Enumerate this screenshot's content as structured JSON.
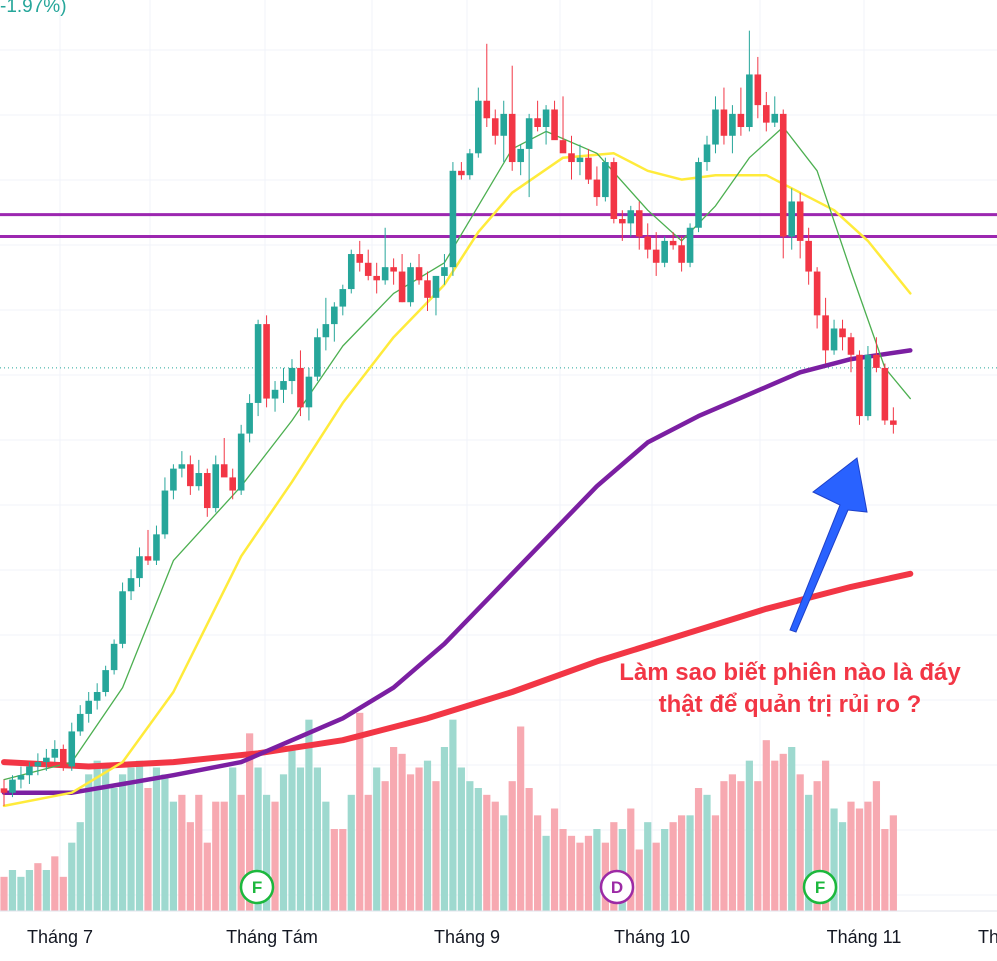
{
  "header": {
    "change_pct": "-1.97%)"
  },
  "chart_data": {
    "type": "candlestick",
    "x_axis": {
      "labels": [
        "Tháng 7",
        "Tháng Tám",
        "Tháng 9",
        "Tháng 10",
        "Tháng 11",
        "Th"
      ]
    },
    "y_range": [
      15.5,
      36.3
    ],
    "colors": {
      "up": "#26a69a",
      "down": "#f23645",
      "vol_up": "#9ed9cf",
      "vol_down": "#f7a9b1",
      "ma_fast": "#4caf50",
      "ma_mid": "#ffeb3b",
      "ma_slow": "#7b1fa2",
      "ma_long": "#f23645",
      "resistance": "#9c27b0",
      "arrow": "#2962ff"
    },
    "candles": [
      [
        18.3,
        18.5,
        17.9,
        18.2
      ],
      [
        18.2,
        18.6,
        18.1,
        18.5
      ],
      [
        18.5,
        18.8,
        18.3,
        18.6
      ],
      [
        18.6,
        18.9,
        18.4,
        18.8
      ],
      [
        18.8,
        19.1,
        18.6,
        18.9
      ],
      [
        18.9,
        19.2,
        18.7,
        19.0
      ],
      [
        19.0,
        19.4,
        18.9,
        19.2
      ],
      [
        19.2,
        19.3,
        18.7,
        18.8
      ],
      [
        18.8,
        19.8,
        18.7,
        19.6
      ],
      [
        19.6,
        20.2,
        19.5,
        20.0
      ],
      [
        20.0,
        20.5,
        19.8,
        20.3
      ],
      [
        20.3,
        20.7,
        20.1,
        20.5
      ],
      [
        20.5,
        21.1,
        20.4,
        21.0
      ],
      [
        21.0,
        21.7,
        20.9,
        21.6
      ],
      [
        21.6,
        23.0,
        21.5,
        22.8
      ],
      [
        22.8,
        23.3,
        22.6,
        23.1
      ],
      [
        23.1,
        23.8,
        22.9,
        23.6
      ],
      [
        23.6,
        24.2,
        23.4,
        23.5
      ],
      [
        23.5,
        24.3,
        23.4,
        24.1
      ],
      [
        24.1,
        25.4,
        24.0,
        25.1
      ],
      [
        25.1,
        25.7,
        24.9,
        25.6
      ],
      [
        25.6,
        26.0,
        25.4,
        25.7
      ],
      [
        25.7,
        25.9,
        25.0,
        25.2
      ],
      [
        25.2,
        25.8,
        25.1,
        25.5
      ],
      [
        25.5,
        25.6,
        24.5,
        24.7
      ],
      [
        24.7,
        25.9,
        24.6,
        25.7
      ],
      [
        25.7,
        26.3,
        25.5,
        25.4
      ],
      [
        25.4,
        25.6,
        24.9,
        25.1
      ],
      [
        25.1,
        26.6,
        25.0,
        26.4
      ],
      [
        26.4,
        27.3,
        26.2,
        27.1
      ],
      [
        27.1,
        29.0,
        26.8,
        28.9
      ],
      [
        28.9,
        29.1,
        27.0,
        27.2
      ],
      [
        27.2,
        27.6,
        26.9,
        27.4
      ],
      [
        27.4,
        27.9,
        27.1,
        27.6
      ],
      [
        27.6,
        28.1,
        27.3,
        27.9
      ],
      [
        27.9,
        28.3,
        26.8,
        27.0
      ],
      [
        27.0,
        27.9,
        26.7,
        27.7
      ],
      [
        27.7,
        28.8,
        27.6,
        28.6
      ],
      [
        28.6,
        29.5,
        28.3,
        28.9
      ],
      [
        28.9,
        29.4,
        28.5,
        29.3
      ],
      [
        29.3,
        29.8,
        29.1,
        29.7
      ],
      [
        29.7,
        30.6,
        29.6,
        30.5
      ],
      [
        30.5,
        30.8,
        30.1,
        30.3
      ],
      [
        30.3,
        30.6,
        29.9,
        30.0
      ],
      [
        30.0,
        30.3,
        29.6,
        29.9
      ],
      [
        29.9,
        31.1,
        29.8,
        30.2
      ],
      [
        30.2,
        30.4,
        29.8,
        30.1
      ],
      [
        30.1,
        30.5,
        29.4,
        29.4
      ],
      [
        29.4,
        30.3,
        29.3,
        30.2
      ],
      [
        30.2,
        30.5,
        29.8,
        29.9
      ],
      [
        29.9,
        30.1,
        29.2,
        29.5
      ],
      [
        29.5,
        30.0,
        29.1,
        30.0
      ],
      [
        30.0,
        30.5,
        29.8,
        30.2
      ],
      [
        30.2,
        32.6,
        30.0,
        32.4
      ],
      [
        32.4,
        32.6,
        32.2,
        32.3
      ],
      [
        32.3,
        32.9,
        32.2,
        32.8
      ],
      [
        32.8,
        34.3,
        32.7,
        34.0
      ],
      [
        34.0,
        35.3,
        33.4,
        33.6
      ],
      [
        33.6,
        33.8,
        33.0,
        33.2
      ],
      [
        33.2,
        34.0,
        32.6,
        33.7
      ],
      [
        33.7,
        34.8,
        32.4,
        32.6
      ],
      [
        32.6,
        33.0,
        32.3,
        32.9
      ],
      [
        32.9,
        33.7,
        31.8,
        33.6
      ],
      [
        33.6,
        34.0,
        33.3,
        33.4
      ],
      [
        33.4,
        33.9,
        33.0,
        33.8
      ],
      [
        33.8,
        34.0,
        33.2,
        33.1
      ],
      [
        33.1,
        34.1,
        32.9,
        32.8
      ],
      [
        32.8,
        33.2,
        32.2,
        32.6
      ],
      [
        32.6,
        33.0,
        32.3,
        32.7
      ],
      [
        32.7,
        32.9,
        32.1,
        32.2
      ],
      [
        32.2,
        32.5,
        31.6,
        31.8
      ],
      [
        31.8,
        32.7,
        31.7,
        32.6
      ],
      [
        32.6,
        32.7,
        31.2,
        31.3
      ],
      [
        31.3,
        31.5,
        30.8,
        31.2
      ],
      [
        31.2,
        31.6,
        30.9,
        31.5
      ],
      [
        31.5,
        31.7,
        30.6,
        30.9
      ],
      [
        30.9,
        31.2,
        30.4,
        30.6
      ],
      [
        30.6,
        31.0,
        30.0,
        30.3
      ],
      [
        30.3,
        30.9,
        30.2,
        30.8
      ],
      [
        30.8,
        31.0,
        30.6,
        30.7
      ],
      [
        30.7,
        30.9,
        30.1,
        30.3
      ],
      [
        30.3,
        31.2,
        30.2,
        31.1
      ],
      [
        31.1,
        32.7,
        31.0,
        32.6
      ],
      [
        32.6,
        33.2,
        32.4,
        33.0
      ],
      [
        33.0,
        34.1,
        32.8,
        33.8
      ],
      [
        33.8,
        34.3,
        33.0,
        33.2
      ],
      [
        33.2,
        33.9,
        32.8,
        33.7
      ],
      [
        33.7,
        34.3,
        33.2,
        33.4
      ],
      [
        33.4,
        35.6,
        33.3,
        34.6
      ],
      [
        34.6,
        35.0,
        33.6,
        33.9
      ],
      [
        33.9,
        34.2,
        33.3,
        33.5
      ],
      [
        33.5,
        34.1,
        33.4,
        33.7
      ],
      [
        33.7,
        33.8,
        30.4,
        30.9
      ],
      [
        30.9,
        32.0,
        30.6,
        31.7
      ],
      [
        31.7,
        31.9,
        30.4,
        30.8
      ],
      [
        30.8,
        31.1,
        29.8,
        30.1
      ],
      [
        30.1,
        30.2,
        28.8,
        29.1
      ],
      [
        29.1,
        29.5,
        28.0,
        28.3
      ],
      [
        28.3,
        29.0,
        28.2,
        28.8
      ],
      [
        28.8,
        29.0,
        28.3,
        28.6
      ],
      [
        28.6,
        28.7,
        27.8,
        28.2
      ],
      [
        28.2,
        28.3,
        26.6,
        26.8
      ],
      [
        26.8,
        28.4,
        26.7,
        28.2
      ],
      [
        28.2,
        28.6,
        27.8,
        27.9
      ],
      [
        27.9,
        28.0,
        26.6,
        26.7
      ],
      [
        26.7,
        27.0,
        26.4,
        26.6
      ]
    ],
    "volume": [
      [
        5,
        "down"
      ],
      [
        6,
        "up"
      ],
      [
        5,
        "up"
      ],
      [
        6,
        "up"
      ],
      [
        7,
        "down"
      ],
      [
        6,
        "up"
      ],
      [
        8,
        "down"
      ],
      [
        5,
        "down"
      ],
      [
        10,
        "up"
      ],
      [
        13,
        "up"
      ],
      [
        20,
        "up"
      ],
      [
        22,
        "up"
      ],
      [
        21,
        "up"
      ],
      [
        18,
        "up"
      ],
      [
        20,
        "up"
      ],
      [
        21,
        "up"
      ],
      [
        22,
        "up"
      ],
      [
        18,
        "down"
      ],
      [
        21,
        "up"
      ],
      [
        20,
        "up"
      ],
      [
        16,
        "up"
      ],
      [
        17,
        "down"
      ],
      [
        13,
        "down"
      ],
      [
        17,
        "down"
      ],
      [
        10,
        "down"
      ],
      [
        16,
        "down"
      ],
      [
        16,
        "down"
      ],
      [
        21,
        "up"
      ],
      [
        17,
        "down"
      ],
      [
        26,
        "down"
      ],
      [
        21,
        "up"
      ],
      [
        17,
        "up"
      ],
      [
        16,
        "down"
      ],
      [
        20,
        "up"
      ],
      [
        24,
        "up"
      ],
      [
        21,
        "up"
      ],
      [
        28,
        "up"
      ],
      [
        21,
        "up"
      ],
      [
        16,
        "up"
      ],
      [
        12,
        "down"
      ],
      [
        12,
        "down"
      ],
      [
        17,
        "up"
      ],
      [
        29,
        "down"
      ],
      [
        17,
        "down"
      ],
      [
        21,
        "up"
      ],
      [
        19,
        "down"
      ],
      [
        24,
        "down"
      ],
      [
        23,
        "down"
      ],
      [
        20,
        "down"
      ],
      [
        21,
        "down"
      ],
      [
        22,
        "up"
      ],
      [
        19,
        "down"
      ],
      [
        24,
        "up"
      ],
      [
        28,
        "up"
      ],
      [
        21,
        "up"
      ],
      [
        19,
        "up"
      ],
      [
        18,
        "up"
      ],
      [
        17,
        "down"
      ],
      [
        16,
        "down"
      ],
      [
        14,
        "up"
      ],
      [
        19,
        "down"
      ],
      [
        27,
        "down"
      ],
      [
        18,
        "down"
      ],
      [
        14,
        "down"
      ],
      [
        11,
        "up"
      ],
      [
        15,
        "down"
      ],
      [
        12,
        "down"
      ],
      [
        11,
        "down"
      ],
      [
        10,
        "down"
      ],
      [
        11,
        "down"
      ],
      [
        12,
        "up"
      ],
      [
        10,
        "down"
      ],
      [
        13,
        "down"
      ],
      [
        12,
        "up"
      ],
      [
        15,
        "down"
      ],
      [
        9,
        "down"
      ],
      [
        13,
        "up"
      ],
      [
        10,
        "down"
      ],
      [
        12,
        "up"
      ],
      [
        13,
        "down"
      ],
      [
        14,
        "down"
      ],
      [
        14,
        "up"
      ],
      [
        18,
        "down"
      ],
      [
        17,
        "up"
      ],
      [
        14,
        "down"
      ],
      [
        19,
        "down"
      ],
      [
        20,
        "down"
      ],
      [
        19,
        "down"
      ],
      [
        22,
        "up"
      ],
      [
        19,
        "down"
      ],
      [
        25,
        "down"
      ],
      [
        22,
        "down"
      ],
      [
        23,
        "down"
      ],
      [
        24,
        "up"
      ],
      [
        20,
        "down"
      ],
      [
        17,
        "up"
      ],
      [
        19,
        "down"
      ],
      [
        22,
        "down"
      ],
      [
        15,
        "up"
      ],
      [
        13,
        "up"
      ],
      [
        16,
        "down"
      ],
      [
        15,
        "down"
      ],
      [
        16,
        "down"
      ],
      [
        19,
        "down"
      ],
      [
        12,
        "down"
      ],
      [
        14,
        "down"
      ]
    ],
    "ma_fast": [
      [
        0,
        18.5
      ],
      [
        8,
        18.9
      ],
      [
        14,
        20.6
      ],
      [
        20,
        23.5
      ],
      [
        28,
        25.2
      ],
      [
        34,
        26.7
      ],
      [
        40,
        28.4
      ],
      [
        46,
        29.6
      ],
      [
        52,
        30.3
      ],
      [
        56,
        31.6
      ],
      [
        60,
        32.9
      ],
      [
        64,
        33.3
      ],
      [
        70,
        32.8
      ],
      [
        76,
        31.5
      ],
      [
        80,
        30.8
      ],
      [
        84,
        31.6
      ],
      [
        88,
        32.7
      ],
      [
        92,
        33.4
      ],
      [
        96,
        32.4
      ],
      [
        100,
        30.1
      ],
      [
        104,
        27.9
      ],
      [
        107,
        27.2
      ]
    ],
    "ma_mid": [
      [
        0,
        17.9
      ],
      [
        8,
        18.2
      ],
      [
        14,
        18.9
      ],
      [
        20,
        20.5
      ],
      [
        28,
        23.6
      ],
      [
        34,
        25.3
      ],
      [
        40,
        27.1
      ],
      [
        46,
        28.6
      ],
      [
        52,
        29.8
      ],
      [
        56,
        31.0
      ],
      [
        60,
        31.9
      ],
      [
        66,
        32.7
      ],
      [
        72,
        32.8
      ],
      [
        76,
        32.4
      ],
      [
        80,
        32.2
      ],
      [
        84,
        32.3
      ],
      [
        90,
        32.3
      ],
      [
        94,
        31.9
      ],
      [
        98,
        31.5
      ],
      [
        102,
        30.8
      ],
      [
        107,
        29.6
      ]
    ],
    "ma_slow": [
      [
        0,
        18.2
      ],
      [
        8,
        18.2
      ],
      [
        14,
        18.4
      ],
      [
        20,
        18.6
      ],
      [
        28,
        18.9
      ],
      [
        34,
        19.4
      ],
      [
        40,
        19.9
      ],
      [
        46,
        20.6
      ],
      [
        52,
        21.6
      ],
      [
        58,
        22.8
      ],
      [
        64,
        24.0
      ],
      [
        70,
        25.2
      ],
      [
        76,
        26.2
      ],
      [
        82,
        26.8
      ],
      [
        88,
        27.3
      ],
      [
        94,
        27.8
      ],
      [
        100,
        28.1
      ],
      [
        107,
        28.3
      ]
    ],
    "ma_long": [
      [
        0,
        18.9
      ],
      [
        10,
        18.8
      ],
      [
        20,
        18.9
      ],
      [
        30,
        19.1
      ],
      [
        40,
        19.4
      ],
      [
        50,
        19.9
      ],
      [
        60,
        20.5
      ],
      [
        70,
        21.2
      ],
      [
        80,
        21.8
      ],
      [
        90,
        22.4
      ],
      [
        100,
        22.9
      ],
      [
        107,
        23.2
      ]
    ],
    "resistance": [
      31.4,
      30.9
    ],
    "price_line": 27.9,
    "annotation": {
      "line1": "Làm sao biết phiên nào là đáy",
      "line2": "thật để quản trị rủi ro ?"
    },
    "events": [
      {
        "label": "F",
        "color": "#1cb83d"
      },
      {
        "label": "D",
        "color": "#9c2aa5"
      },
      {
        "label": "F",
        "color": "#1cb83d"
      }
    ]
  }
}
